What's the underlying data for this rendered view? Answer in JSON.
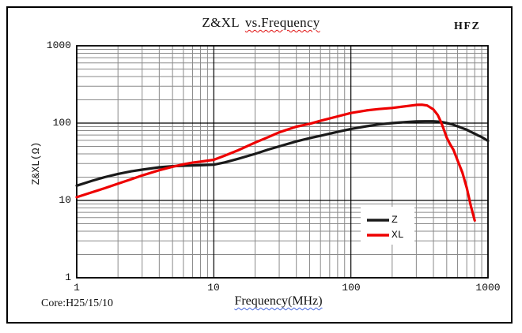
{
  "header": {
    "title_main": "Z&XL",
    "title_vs": "vs.Frequency",
    "corner_tag": "HFZ"
  },
  "footer": {
    "core_note": "Core:H25/15/10"
  },
  "chart_data": {
    "type": "line",
    "title_main": "Z&XL",
    "title_vs": "vs.Frequency",
    "corner_tag": "HFZ",
    "core_note": "Core:H25/15/10",
    "x_axis": {
      "label": "Frequency(MHz)",
      "scale": "log",
      "min": 1,
      "max": 1000,
      "ticks": [
        "1",
        "10",
        "100",
        "1000"
      ]
    },
    "y_axis": {
      "label": "Z&XL(Ω)",
      "scale": "log",
      "min": 1,
      "max": 1000,
      "ticks": [
        "1000",
        "100",
        "10",
        "1"
      ]
    },
    "grid": {
      "minor_color": "#8a8a8a",
      "major_color": "#000000",
      "on": true
    },
    "legend_position": "inside-lower-right",
    "series": [
      {
        "name": "Z",
        "color": "#1a1a1a",
        "points": [
          [
            1,
            15.5
          ],
          [
            1.3,
            18
          ],
          [
            1.6,
            20
          ],
          [
            2,
            22
          ],
          [
            2.5,
            23.8
          ],
          [
            3,
            25
          ],
          [
            4,
            26.8
          ],
          [
            5,
            27.7
          ],
          [
            6,
            28.1
          ],
          [
            8,
            28.5
          ],
          [
            10,
            29
          ],
          [
            12,
            31
          ],
          [
            15,
            34.5
          ],
          [
            20,
            40
          ],
          [
            25,
            45.5
          ],
          [
            30,
            50
          ],
          [
            40,
            58
          ],
          [
            50,
            64
          ],
          [
            60,
            68.5
          ],
          [
            80,
            77
          ],
          [
            100,
            84
          ],
          [
            130,
            91
          ],
          [
            160,
            96
          ],
          [
            200,
            100
          ],
          [
            250,
            103
          ],
          [
            300,
            105
          ],
          [
            350,
            105.5
          ],
          [
            400,
            105.5
          ],
          [
            450,
            104
          ],
          [
            500,
            100
          ],
          [
            550,
            96
          ],
          [
            600,
            91
          ],
          [
            650,
            86
          ],
          [
            700,
            82
          ],
          [
            750,
            77
          ],
          [
            800,
            73
          ],
          [
            850,
            69
          ],
          [
            900,
            66
          ],
          [
            1000,
            59
          ]
        ]
      },
      {
        "name": "XL",
        "color": "#ee0000",
        "points": [
          [
            1,
            11
          ],
          [
            1.3,
            12.8
          ],
          [
            1.6,
            14.4
          ],
          [
            2,
            16.5
          ],
          [
            2.5,
            18.8
          ],
          [
            3,
            21
          ],
          [
            4,
            24.6
          ],
          [
            5,
            27.3
          ],
          [
            6,
            29.3
          ],
          [
            7,
            30.8
          ],
          [
            8,
            31.8
          ],
          [
            10,
            33.5
          ],
          [
            12,
            38
          ],
          [
            15,
            44.5
          ],
          [
            20,
            56
          ],
          [
            25,
            66
          ],
          [
            30,
            76
          ],
          [
            40,
            90
          ],
          [
            50,
            98
          ],
          [
            60,
            107
          ],
          [
            80,
            122
          ],
          [
            100,
            135
          ],
          [
            130,
            146
          ],
          [
            160,
            152
          ],
          [
            200,
            157
          ],
          [
            250,
            165
          ],
          [
            300,
            172
          ],
          [
            330,
            173
          ],
          [
            360,
            169
          ],
          [
            400,
            150
          ],
          [
            430,
            127
          ],
          [
            450,
            107
          ],
          [
            470,
            88
          ],
          [
            500,
            65
          ],
          [
            530,
            53
          ],
          [
            560,
            45
          ],
          [
            600,
            33
          ],
          [
            650,
            23
          ],
          [
            700,
            14.5
          ],
          [
            750,
            8.5
          ],
          [
            800,
            5.5
          ]
        ]
      }
    ]
  }
}
